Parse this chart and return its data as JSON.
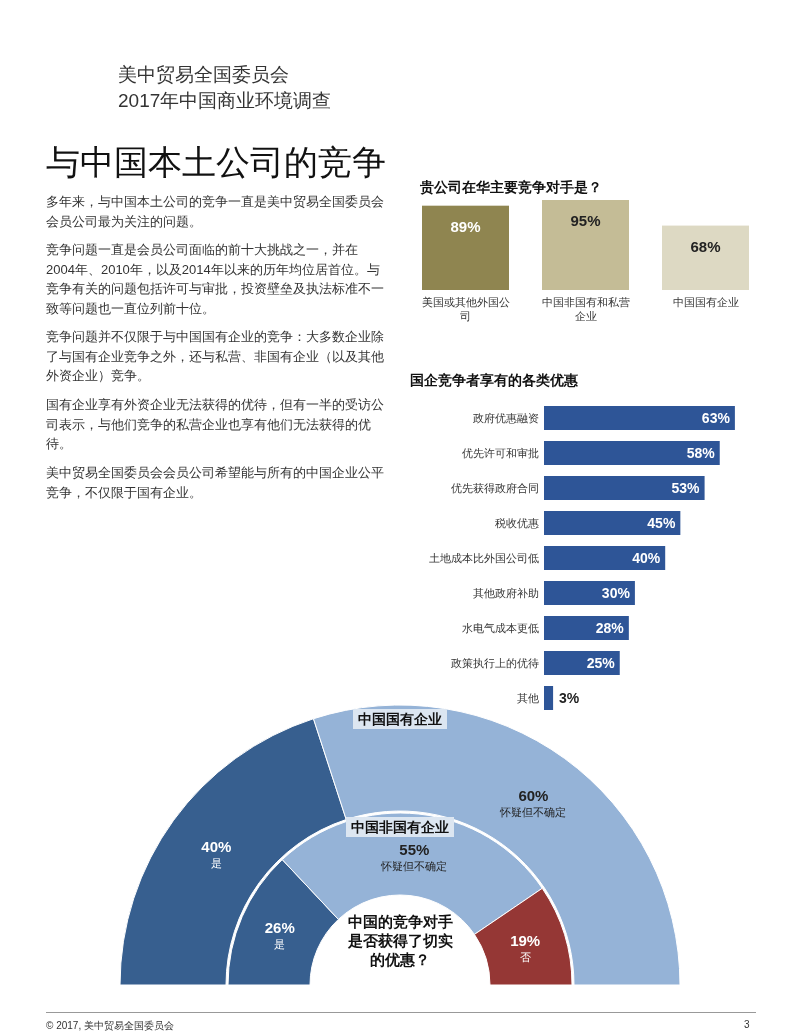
{
  "chart_data": [
    {
      "type": "other",
      "title": "与中国本土公司的竞争",
      "annotations": [
        "美中贸易全国委员会",
        "2017年中国商业环境调查",
        "多年来，与中国本土公司的竞争一直是美中贸易全国委员会会员公司最为关注的问题。",
        "竞争问题一直是会员公司面临的前十大挑战之一，并在2004年、2010年，以及2014年以来的历年均位居首位。与竞争有关的问题包括许可与审批，投资壁垒及执法标准不一致等问题也一直位列前十位。",
        "竞争问题并不仅限于与中国国有企业的竞争：大多数企业除了与国有企业竞争之外，还与私营、非国有企业（以及其他外资企业）竞争。",
        "国有企业享有外资企业无法获得的优待，但有一半的受访公司表示，与他们竞争的私营企业也享有他们无法获得的优待。",
        "美中贸易全国委员会会员公司希望能与所有的中国企业公平竞争，不仅限于国有企业。",
        "© 2017, 美中贸易全国委员会",
        "3"
      ]
    },
    {
      "type": "bar",
      "title": "贵公司在华主要竞争对手是？",
      "categories": [
        "美国或其他外国公司",
        "中国非国有和私营企业",
        "中国国有企业"
      ],
      "values": [
        89,
        95,
        68
      ],
      "value_labels": [
        "89%",
        "95%",
        "68%"
      ],
      "colors": [
        "#8f8550",
        "#c4bc96",
        "#ddd9c3"
      ]
    },
    {
      "type": "bar",
      "orientation": "horizontal",
      "title": "国企竞争者享有的各类优惠",
      "categories": [
        "政府优惠融资",
        "优先许可和审批",
        "优先获得政府合同",
        "税收优惠",
        "土地成本比外国公司低",
        "其他政府补助",
        "水电气成本更低",
        "政策执行上的优待",
        "其他"
      ],
      "values": [
        63,
        58,
        53,
        45,
        40,
        30,
        28,
        25,
        3
      ],
      "value_labels": [
        "63%",
        "58%",
        "53%",
        "45%",
        "40%",
        "30%",
        "28%",
        "25%",
        "3%"
      ],
      "color": "#2e5597"
    },
    {
      "type": "donut",
      "title": "中国国有企业",
      "categories": [
        "是",
        "怀疑但不确定"
      ],
      "values": [
        40,
        60
      ],
      "value_labels": [
        "40%",
        "60%"
      ],
      "colors": [
        "#375f8f",
        "#95b3d7"
      ]
    },
    {
      "type": "donut",
      "title": "中国非国有企业",
      "categories": [
        "是",
        "怀疑但不确定",
        "否"
      ],
      "values": [
        26,
        55,
        19
      ],
      "value_labels": [
        "26%",
        "55%",
        "19%"
      ],
      "colors": [
        "#375f8f",
        "#95b3d7",
        "#953735"
      ],
      "annotations": [
        "中国的竞争对手是否获得了切实的优惠？"
      ]
    }
  ]
}
